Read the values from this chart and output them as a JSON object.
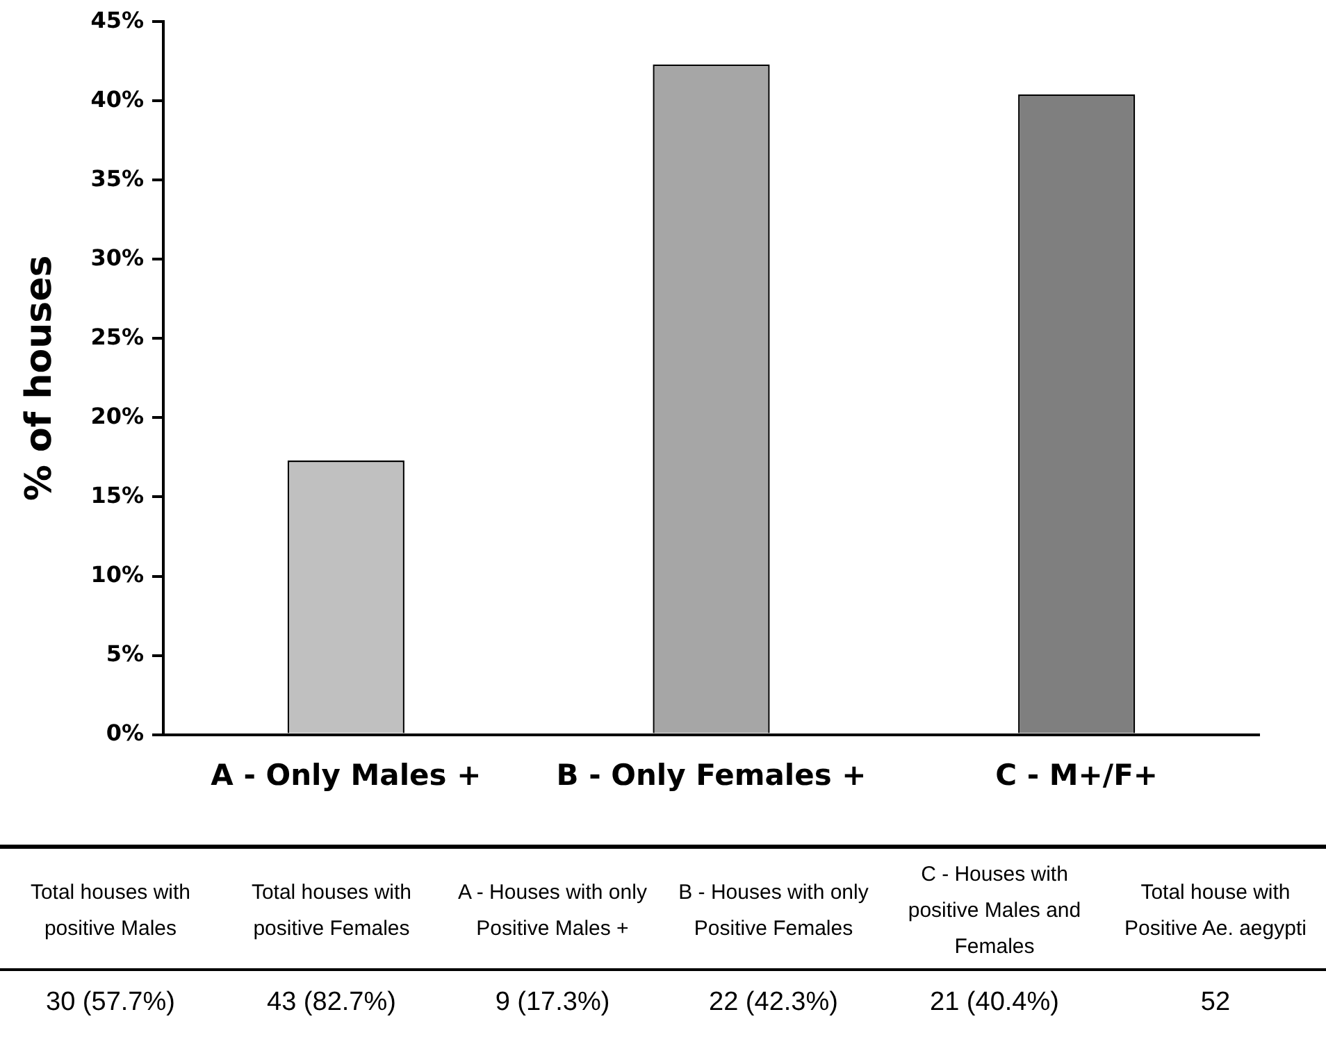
{
  "chart_data": {
    "type": "bar",
    "ylabel": "% of houses",
    "categories": [
      "A - Only Males +",
      "B - Only Females +",
      "C - M+/F+"
    ],
    "values": [
      17.3,
      42.3,
      40.4
    ],
    "colors": [
      "#c0c0c0",
      "#a6a6a6",
      "#7f7f7f"
    ],
    "ylim": [
      0,
      45
    ],
    "yticks": [
      {
        "value": 0,
        "label": "0%"
      },
      {
        "value": 5,
        "label": "5%"
      },
      {
        "value": 10,
        "label": "10%"
      },
      {
        "value": 15,
        "label": "15%"
      },
      {
        "value": 20,
        "label": "20%"
      },
      {
        "value": 25,
        "label": "25%"
      },
      {
        "value": 30,
        "label": "30%"
      },
      {
        "value": 35,
        "label": "35%"
      },
      {
        "value": 40,
        "label": "40%"
      },
      {
        "value": 45,
        "label": "45%"
      }
    ],
    "grid": false,
    "legend": false,
    "annotations": [
      "Total houses with positive Males",
      "Total houses with positive Females",
      "A - Houses with only Positive Males +",
      "B - Houses with only Positive Females",
      "C - Houses with positive Males and Females",
      "Total house with Positive Ae. aegypti",
      "30 (57.7%)",
      "43 (82.7%)",
      "9 (17.3%)",
      "22 (42.3%)",
      "21 (40.4%)",
      "52"
    ]
  }
}
